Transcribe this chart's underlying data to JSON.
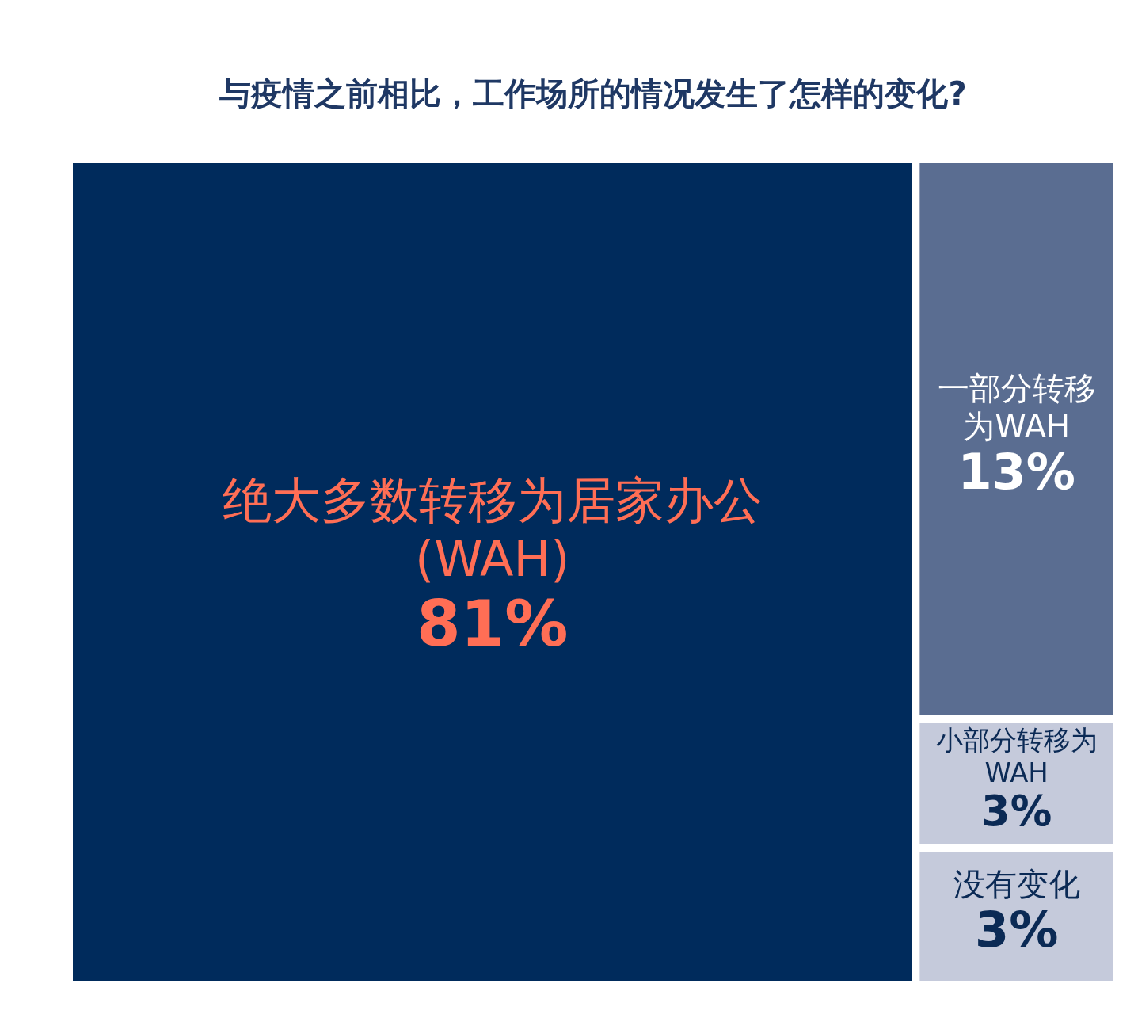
{
  "chart_data": {
    "type": "other",
    "title": "与疫情之前相比，工作场所的情况发生了怎样的变化?",
    "categories": [
      "绝大多数转移为居家办公(WAH)",
      "一部分转移为WAH",
      "小部分转移为WAH",
      "没有变化"
    ],
    "values": [
      81,
      13,
      3,
      3
    ],
    "value_labels": [
      "81%",
      "13%",
      "3%",
      "3%"
    ],
    "colors": [
      "#002b5c",
      "#5a6d91",
      "#c5cadb",
      "#c5cadb"
    ]
  }
}
